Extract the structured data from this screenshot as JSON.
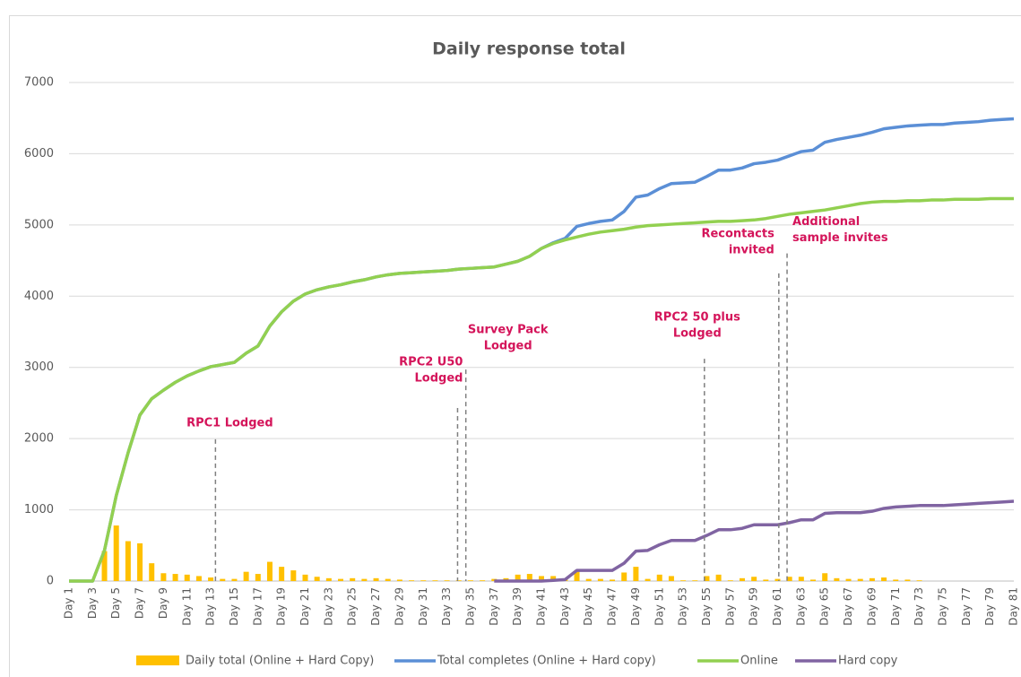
{
  "chart_data": {
    "type": "combo",
    "title": "Daily response total",
    "categories": [
      "Day 1",
      null,
      "Day 3",
      null,
      "Day 5",
      null,
      "Day 7",
      null,
      "Day 9",
      null,
      "Day 11",
      null,
      "Day 13",
      null,
      "Day 15",
      null,
      "Day 17",
      null,
      "Day 19",
      null,
      "Day 21",
      null,
      "Day 23",
      null,
      "Day 25",
      null,
      "Day 27",
      null,
      "Day 29",
      null,
      "Day 31",
      null,
      "Day 33",
      null,
      "Day 35",
      null,
      "Day 37",
      null,
      "Day 39",
      null,
      "Day 41",
      null,
      "Day 43",
      null,
      "Day 45",
      null,
      "Day 47",
      null,
      "Day 49",
      null,
      "Day 51",
      null,
      "Day 53",
      null,
      "Day 55",
      null,
      "Day 57",
      null,
      "Day 59",
      null,
      "Day 61",
      null,
      "Day 63",
      null,
      "Day 65",
      null,
      "Day 67",
      null,
      "Day 69",
      null,
      "Day 71",
      null,
      "Day 73",
      null,
      "Day 75",
      null,
      "Day 77",
      null,
      "Day 79",
      null,
      "Day 81"
    ],
    "series": [
      {
        "name": "Daily total (Online + Hard Copy)",
        "type": "bar",
        "color": "#ffc000",
        "values": [
          0,
          0,
          0,
          420,
          780,
          560,
          530,
          250,
          110,
          100,
          90,
          70,
          50,
          30,
          30,
          130,
          100,
          270,
          200,
          150,
          90,
          60,
          40,
          30,
          40,
          30,
          40,
          30,
          20,
          10,
          10,
          10,
          10,
          10,
          10,
          10,
          30,
          40,
          90,
          100,
          70,
          70,
          30,
          150,
          30,
          30,
          20,
          120,
          200,
          30,
          90,
          70,
          10,
          10,
          70,
          90,
          10,
          40,
          60,
          20,
          30,
          60,
          60,
          20,
          110,
          40,
          30,
          30,
          40,
          50,
          20,
          20,
          10,
          0,
          0,
          0,
          0,
          0,
          0,
          0,
          0
        ]
      },
      {
        "name": "Total completes (Online + Hard copy)",
        "type": "line",
        "color": "#5b8fd6",
        "values": [
          0,
          0,
          0,
          430,
          1200,
          1800,
          2330,
          2560,
          2680,
          2790,
          2880,
          2950,
          3010,
          3040,
          3070,
          3200,
          3300,
          3580,
          3780,
          3930,
          4030,
          4090,
          4130,
          4160,
          4200,
          4230,
          4270,
          4300,
          4320,
          4330,
          4340,
          4350,
          4360,
          4380,
          4390,
          4400,
          4410,
          4450,
          4490,
          4560,
          4670,
          4750,
          4810,
          4980,
          5020,
          5050,
          5070,
          5190,
          5390,
          5420,
          5510,
          5580,
          5590,
          5600,
          5680,
          5770,
          5770,
          5800,
          5860,
          5880,
          5910,
          5970,
          6030,
          6050,
          6160,
          6200,
          6230,
          6260,
          6300,
          6350,
          6370,
          6390,
          6400,
          6410,
          6410,
          6430,
          6440,
          6450,
          6470,
          6480,
          6490
        ]
      },
      {
        "name": "Online",
        "type": "line",
        "color": "#92d050",
        "values": [
          0,
          0,
          0,
          430,
          1200,
          1800,
          2330,
          2560,
          2680,
          2790,
          2880,
          2950,
          3010,
          3040,
          3070,
          3200,
          3300,
          3580,
          3780,
          3930,
          4030,
          4090,
          4130,
          4160,
          4200,
          4230,
          4270,
          4300,
          4320,
          4330,
          4340,
          4350,
          4360,
          4380,
          4390,
          4400,
          4410,
          4450,
          4490,
          4560,
          4670,
          4740,
          4790,
          4830,
          4870,
          4900,
          4920,
          4940,
          4970,
          4990,
          5000,
          5010,
          5020,
          5030,
          5040,
          5050,
          5050,
          5060,
          5070,
          5090,
          5120,
          5150,
          5170,
          5190,
          5210,
          5240,
          5270,
          5300,
          5320,
          5330,
          5330,
          5340,
          5340,
          5350,
          5350,
          5360,
          5360,
          5360,
          5370,
          5370,
          5370
        ]
      },
      {
        "name": "Hard copy",
        "type": "line",
        "color": "#8064a2",
        "values": [
          null,
          null,
          null,
          null,
          null,
          null,
          null,
          null,
          null,
          null,
          null,
          null,
          null,
          null,
          null,
          null,
          null,
          null,
          null,
          null,
          null,
          null,
          null,
          null,
          null,
          null,
          null,
          null,
          null,
          null,
          null,
          null,
          null,
          null,
          null,
          null,
          0,
          0,
          0,
          0,
          0,
          10,
          20,
          150,
          150,
          150,
          150,
          250,
          420,
          430,
          510,
          570,
          570,
          570,
          640,
          720,
          720,
          740,
          790,
          790,
          790,
          820,
          860,
          860,
          950,
          960,
          960,
          960,
          980,
          1020,
          1040,
          1050,
          1060,
          1060,
          1060,
          1070,
          1080,
          1090,
          1100,
          1110,
          1120
        ]
      }
    ],
    "ylim": [
      0,
      7000
    ],
    "yticks": [
      0,
      1000,
      2000,
      3000,
      4000,
      5000,
      6000,
      7000
    ],
    "grid": true,
    "legend": "bottom",
    "annotations": [
      {
        "text": [
          "RPC1 Lodged"
        ],
        "x": 13.4,
        "top": 1990,
        "color": "#d4145a"
      },
      {
        "text": [
          "RPC2 U50",
          "Lodged"
        ],
        "x": 33.9,
        "top": 2430,
        "color": "#d4145a"
      },
      {
        "text": [
          "Survey Pack",
          "Lodged"
        ],
        "x": 34.6,
        "top": 2970,
        "color": "#d4145a"
      },
      {
        "text": [
          "RPC2 50 plus",
          "Lodged"
        ],
        "x": 54.8,
        "top": 3120,
        "color": "#d4145a"
      },
      {
        "text": [
          "Recontacts",
          "invited"
        ],
        "x": 61.1,
        "top": 4320,
        "color": "#d4145a"
      },
      {
        "text": [
          "Additional",
          "sample invites"
        ],
        "x": 61.8,
        "top": 4600,
        "color": "#d4145a"
      }
    ]
  }
}
